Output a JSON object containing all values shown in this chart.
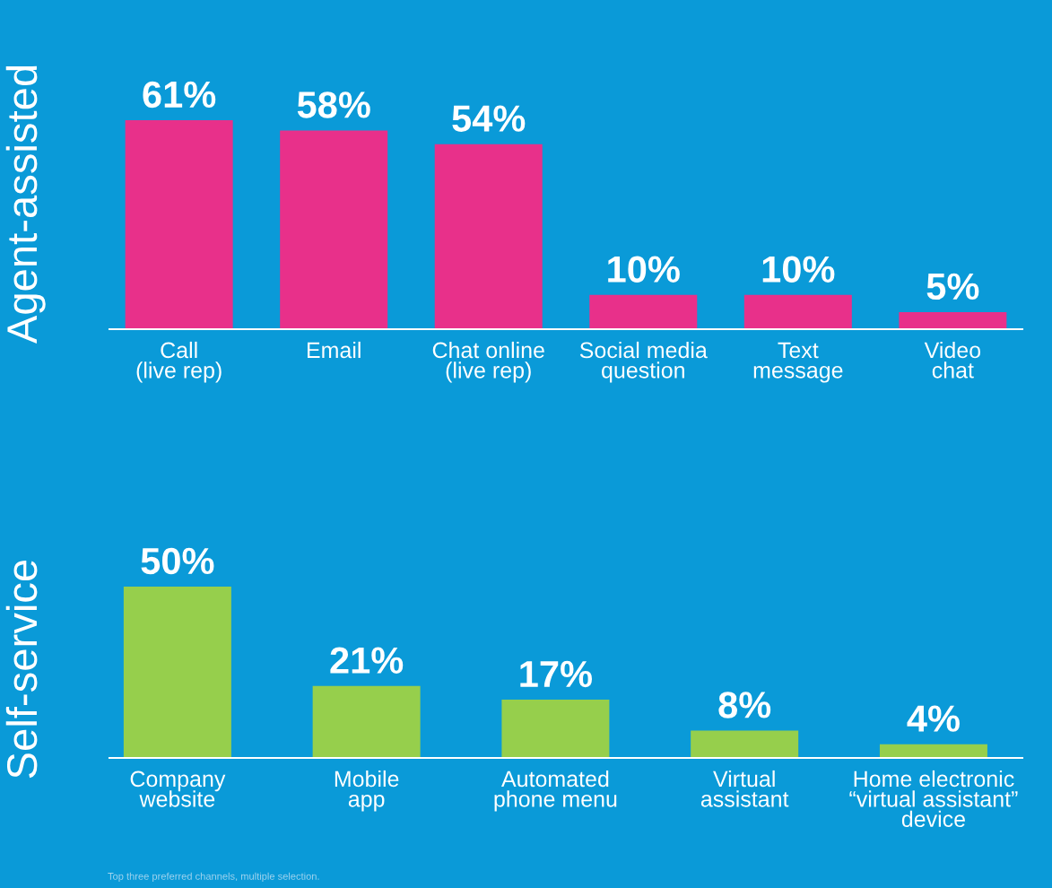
{
  "chart_data": [
    {
      "type": "bar",
      "ylabel": "Agent-assisted",
      "categories": [
        "Call\n(live rep)",
        "Email",
        "Chat online\n(live rep)",
        "Social media\nquestion",
        "Text\nmessage",
        "Video\nchat"
      ],
      "values": [
        61,
        58,
        54,
        10,
        10,
        5
      ],
      "color": "#e8308a",
      "data_labels": true,
      "value_labels": [
        "61%",
        "58%",
        "54%",
        "10%",
        "10%",
        "5%"
      ],
      "tick_labels": "x",
      "grid": false,
      "legend": false
    },
    {
      "type": "bar",
      "ylabel": "Self-service",
      "categories": [
        "Company\nwebsite",
        "Mobile\napp",
        "Automated\nphone menu",
        "Virtual\nassistant",
        "Home electronic\n“virtual assistant”\ndevice"
      ],
      "values": [
        50,
        21,
        17,
        8,
        4
      ],
      "color": "#96cf4c",
      "data_labels": true,
      "value_labels": [
        "50%",
        "21%",
        "17%",
        "8%",
        "4%"
      ],
      "tick_labels": "x",
      "grid": false,
      "legend": false,
      "annotations": [
        "Top three preferred channels, multiple selection."
      ]
    }
  ]
}
